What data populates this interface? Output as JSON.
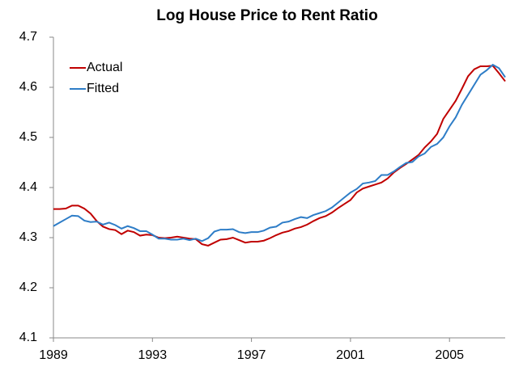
{
  "chart_data": {
    "type": "line",
    "title": "Log House Price to Rent Ratio",
    "x": [
      1989,
      1989.25,
      1989.5,
      1989.75,
      1990,
      1990.25,
      1990.5,
      1990.75,
      1991,
      1991.25,
      1991.5,
      1991.75,
      1992,
      1992.25,
      1992.5,
      1992.75,
      1993,
      1993.25,
      1993.5,
      1993.75,
      1994,
      1994.25,
      1994.5,
      1994.75,
      1995,
      1995.25,
      1995.5,
      1995.75,
      1996,
      1996.25,
      1996.5,
      1996.75,
      1997,
      1997.25,
      1997.5,
      1997.75,
      1998,
      1998.25,
      1998.5,
      1998.75,
      1999,
      1999.25,
      1999.5,
      1999.75,
      2000,
      2000.25,
      2000.5,
      2000.75,
      2001,
      2001.25,
      2001.5,
      2001.75,
      2002,
      2002.25,
      2002.5,
      2002.75,
      2003,
      2003.25,
      2003.5,
      2003.75,
      2004,
      2004.25,
      2004.5,
      2004.75,
      2005,
      2005.25,
      2005.5,
      2005.75,
      2006,
      2006.25,
      2006.5,
      2006.75,
      2007,
      2007.25
    ],
    "series": [
      {
        "name": "Actual",
        "color": "#c00000",
        "values": [
          4.357,
          4.357,
          4.358,
          4.364,
          4.364,
          4.358,
          4.348,
          4.333,
          4.322,
          4.317,
          4.315,
          4.307,
          4.314,
          4.311,
          4.304,
          4.306,
          4.305,
          4.3,
          4.299,
          4.3,
          4.302,
          4.3,
          4.298,
          4.297,
          4.287,
          4.284,
          4.29,
          4.296,
          4.297,
          4.3,
          4.295,
          4.29,
          4.292,
          4.292,
          4.294,
          4.299,
          4.305,
          4.31,
          4.313,
          4.318,
          4.321,
          4.326,
          4.333,
          4.339,
          4.343,
          4.35,
          4.359,
          4.367,
          4.375,
          4.39,
          4.398,
          4.402,
          4.406,
          4.41,
          4.418,
          4.43,
          4.439,
          4.447,
          4.456,
          4.465,
          4.48,
          4.492,
          4.507,
          4.537,
          4.555,
          4.573,
          4.597,
          4.622,
          4.636,
          4.642,
          4.642,
          4.643,
          4.628,
          4.612
        ]
      },
      {
        "name": "Fitted",
        "color": "#2e7dc7",
        "values": [
          4.323,
          4.33,
          4.337,
          4.344,
          4.343,
          4.334,
          4.331,
          4.332,
          4.326,
          4.33,
          4.325,
          4.318,
          4.323,
          4.319,
          4.313,
          4.313,
          4.306,
          4.298,
          4.298,
          4.296,
          4.296,
          4.298,
          4.295,
          4.298,
          4.293,
          4.299,
          4.312,
          4.316,
          4.316,
          4.317,
          4.311,
          4.309,
          4.311,
          4.311,
          4.314,
          4.32,
          4.322,
          4.33,
          4.332,
          4.337,
          4.341,
          4.339,
          4.345,
          4.349,
          4.353,
          4.36,
          4.37,
          4.38,
          4.39,
          4.397,
          4.408,
          4.41,
          4.413,
          4.425,
          4.425,
          4.432,
          4.441,
          4.449,
          4.451,
          4.462,
          4.468,
          4.481,
          4.487,
          4.5,
          4.522,
          4.54,
          4.565,
          4.585,
          4.605,
          4.625,
          4.634,
          4.645,
          4.638,
          4.62
        ]
      }
    ],
    "xlim": [
      1989,
      2007.25
    ],
    "xticks": [
      1989,
      1993,
      1997,
      2001,
      2005
    ],
    "ylim": [
      4.1,
      4.7
    ],
    "yticks": [
      4.1,
      4.2,
      4.3,
      4.4,
      4.5,
      4.6,
      4.7
    ],
    "grid": false,
    "legend": "top-left"
  }
}
